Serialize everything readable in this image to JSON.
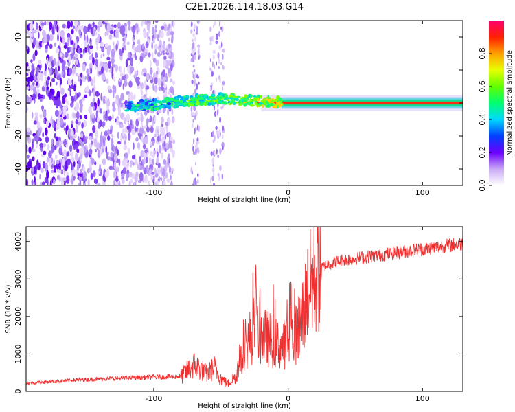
{
  "title": "C2E1.2026.114.18.03.G14",
  "colors": {
    "snr_line": "#f03030",
    "frame": "#000000"
  },
  "chart_data": [
    {
      "type": "heatmap",
      "title": "C2E1.2026.114.18.03.G14",
      "xlabel": "Height of straight line (km)",
      "ylabel": "Frequency (Hz)",
      "xlim": [
        -195,
        130
      ],
      "ylim": [
        -50,
        50
      ],
      "xticks": [
        {
          "v": -100,
          "label": "-100"
        },
        {
          "v": 0,
          "label": "0"
        },
        {
          "v": 100,
          "label": "100"
        }
      ],
      "yticks": [
        {
          "v": -40,
          "label": "-40"
        },
        {
          "v": -20,
          "label": "-20"
        },
        {
          "v": 0,
          "label": "0"
        },
        {
          "v": 20,
          "label": "20"
        },
        {
          "v": 40,
          "label": "40"
        }
      ],
      "colorbar": {
        "label": "Normalized spectral amplitude",
        "range": [
          0,
          1
        ],
        "ticks": [
          {
            "v": 0.0,
            "label": "0.0"
          },
          {
            "v": 0.2,
            "label": "0.2"
          },
          {
            "v": 0.4,
            "label": "0.4"
          },
          {
            "v": 0.6,
            "label": "0.6"
          },
          {
            "v": 0.8,
            "label": "0.8"
          }
        ]
      },
      "ridge": [
        [
          -120,
          -2
        ],
        [
          -100,
          -1
        ],
        [
          -80,
          1
        ],
        [
          -60,
          2
        ],
        [
          -50,
          3
        ],
        [
          -40,
          2
        ],
        [
          -20,
          1
        ],
        [
          0,
          0
        ],
        [
          130,
          0
        ]
      ],
      "noise_region_x": [
        -195,
        -85
      ]
    },
    {
      "type": "line",
      "xlabel": "Height of straight line (km)",
      "ylabel": "SNR (10 * v/v)",
      "xlim": [
        -195,
        130
      ],
      "ylim": [
        0,
        4400
      ],
      "xticks": [
        {
          "v": -100,
          "label": "-100"
        },
        {
          "v": 0,
          "label": "0"
        },
        {
          "v": 100,
          "label": "100"
        }
      ],
      "yticks": [
        {
          "v": 0,
          "label": "0"
        },
        {
          "v": 1000,
          "label": "1000"
        },
        {
          "v": 2000,
          "label": "2000"
        },
        {
          "v": 3000,
          "label": "3000"
        },
        {
          "v": 4000,
          "label": "4000"
        }
      ],
      "series": [
        {
          "name": "SNR",
          "x": [
            -195,
            -180,
            -160,
            -140,
            -120,
            -100,
            -90,
            -80,
            -75,
            -70,
            -65,
            -60,
            -55,
            -50,
            -45,
            -40,
            -35,
            -30,
            -25,
            -20,
            -15,
            -10,
            -5,
            0,
            5,
            10,
            15,
            20,
            25,
            30,
            40,
            50,
            60,
            70,
            80,
            90,
            100,
            110,
            120,
            130
          ],
          "y": [
            220,
            250,
            300,
            330,
            360,
            380,
            390,
            400,
            550,
            700,
            600,
            450,
            650,
            350,
            200,
            380,
            800,
            1300,
            1700,
            1500,
            1400,
            1300,
            1200,
            1350,
            1500,
            1900,
            2700,
            3100,
            3300,
            3400,
            3500,
            3550,
            3600,
            3650,
            3700,
            3750,
            3800,
            3850,
            3900,
            3950
          ]
        }
      ]
    }
  ]
}
